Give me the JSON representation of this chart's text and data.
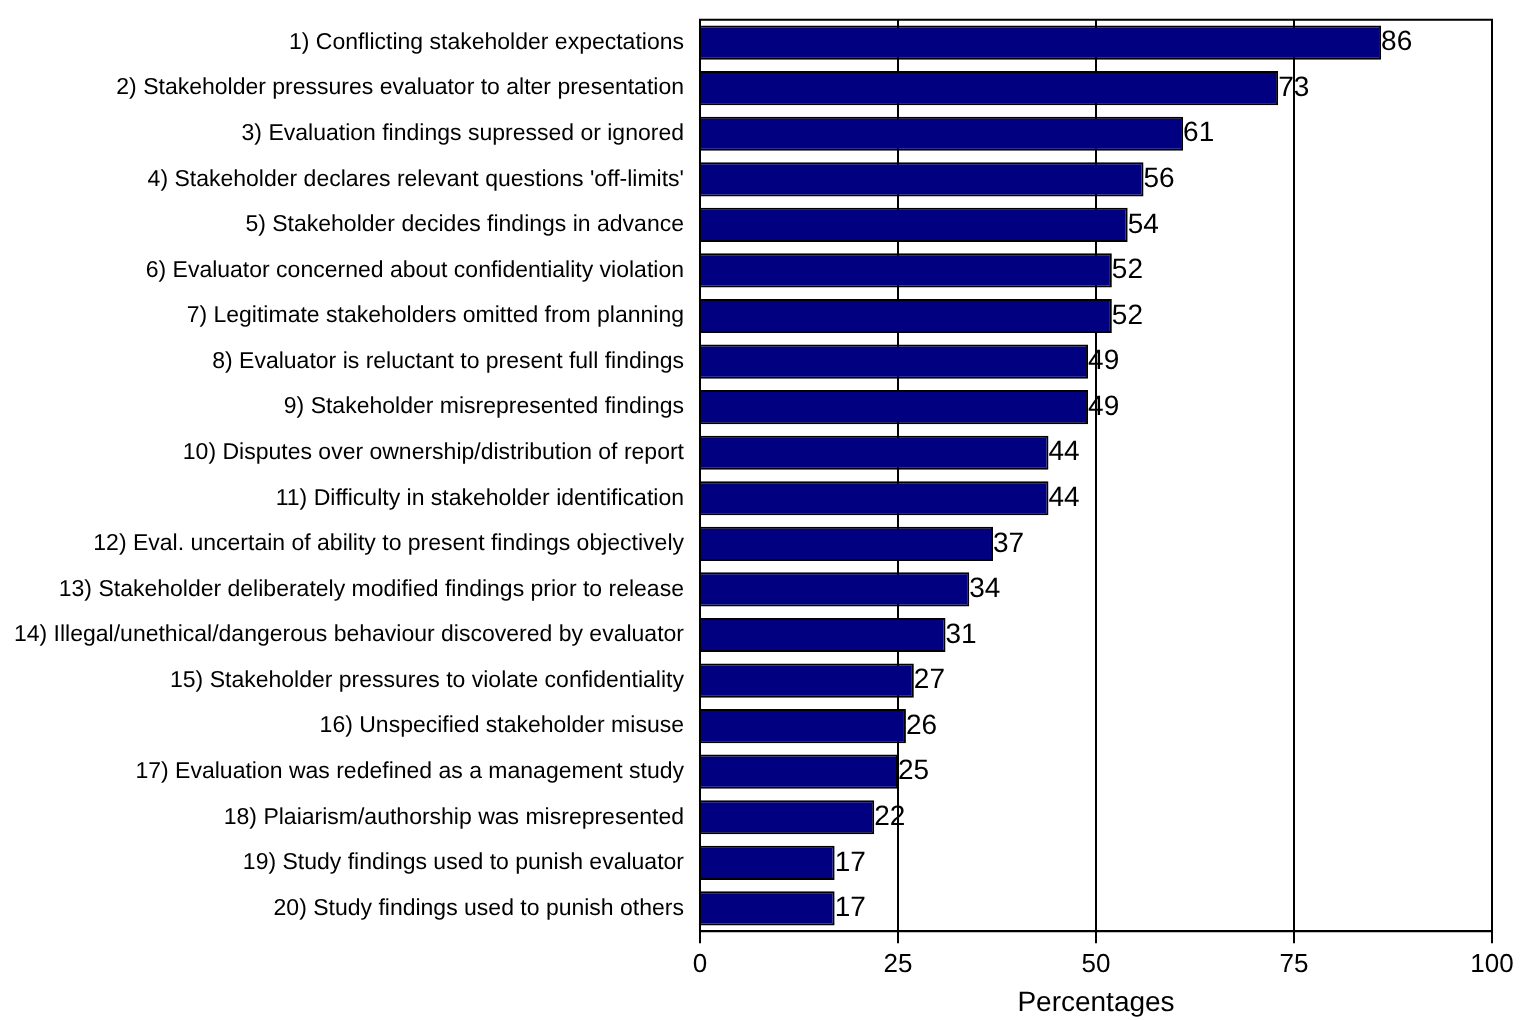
{
  "chart_data": {
    "type": "bar",
    "orientation": "horizontal",
    "xlabel": "Percentages",
    "categories": [
      "1) Conflicting stakeholder expectations",
      "2) Stakeholder pressures evaluator to alter presentation",
      "3) Evaluation findings supressed or ignored",
      "4) Stakeholder declares relevant questions 'off-limits'",
      "5) Stakeholder decides findings in advance",
      "6) Evaluator concerned about confidentiality violation",
      "7) Legitimate stakeholders omitted from planning",
      "8) Evaluator is reluctant to present full findings",
      "9) Stakeholder misrepresented findings",
      "10) Disputes over ownership/distribution of report",
      "11) Difficulty in stakeholder identification",
      "12) Eval. uncertain of ability to present findings objectively",
      "13) Stakeholder deliberately modified findings prior to release",
      "14) Illegal/unethical/dangerous behaviour discovered by evaluator",
      "15) Stakeholder pressures to violate confidentiality",
      "16) Unspecified stakeholder misuse",
      "17) Evaluation was redefined as a management study",
      "18) Plaiarism/authorship was misrepresented",
      "19) Study findings used to punish evaluator",
      "20) Study findings used to punish others"
    ],
    "values": [
      86,
      73,
      61,
      56,
      54,
      52,
      52,
      49,
      49,
      44,
      44,
      37,
      34,
      31,
      27,
      26,
      25,
      22,
      17,
      17
    ],
    "color": "#000080",
    "xlim": [
      0,
      100
    ],
    "xticks": [
      0,
      25,
      50,
      75,
      100
    ],
    "grid": "x",
    "data_labels": true,
    "legend": false
  }
}
